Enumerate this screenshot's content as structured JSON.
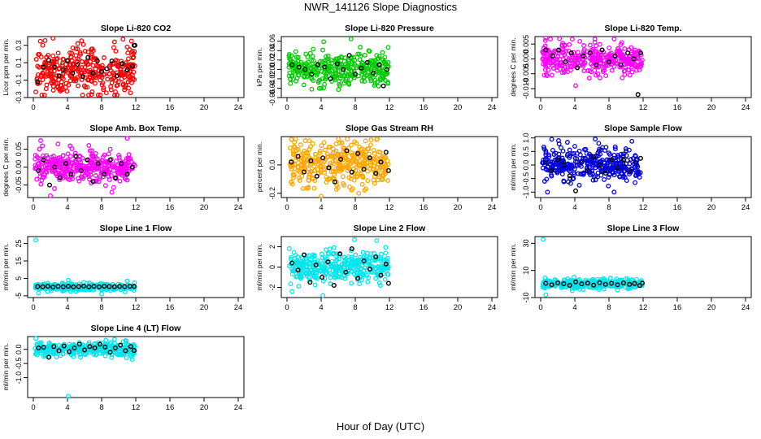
{
  "figure": {
    "title": "NWR_141126  Slope Diagnostics",
    "xlabel": "Hour of Day (UTC)"
  },
  "chart_data": [
    {
      "type": "scatter",
      "title": "Slope Li-820 CO2",
      "ylabel": "Licor ppm per min.",
      "color": "#ff0000",
      "xlim": [
        0,
        24
      ],
      "xticks": [
        0,
        4,
        8,
        12,
        16,
        20,
        24
      ],
      "ylim": [
        -0.3,
        0.4
      ],
      "yticks": [
        -0.3,
        -0.1,
        0.1,
        0.3
      ],
      "spread": 0.13,
      "outliers": [
        [
          2.3,
          0.38
        ],
        [
          10.5,
          0.37
        ],
        [
          7.6,
          -0.27
        ],
        [
          5.2,
          0.32
        ],
        [
          1.5,
          -0.2
        ]
      ],
      "black": [
        [
          0.5,
          -0.12
        ],
        [
          1.2,
          0.05
        ],
        [
          1.8,
          0.13
        ],
        [
          2.5,
          0.05
        ],
        [
          3.0,
          -0.05
        ],
        [
          3.5,
          0.02
        ],
        [
          4.0,
          0.12
        ],
        [
          4.6,
          -0.02
        ],
        [
          5.2,
          0.08
        ],
        [
          5.8,
          -0.06
        ],
        [
          6.4,
          0.16
        ],
        [
          7.0,
          -0.02
        ],
        [
          7.5,
          0.12
        ],
        [
          8.0,
          0.0
        ],
        [
          8.6,
          0.03
        ],
        [
          9.2,
          0.12
        ],
        [
          9.8,
          -0.05
        ],
        [
          10.4,
          0.09
        ],
        [
          11.0,
          0.02
        ],
        [
          11.6,
          0.06
        ],
        [
          11.8,
          0.3
        ],
        [
          11.9,
          0.3
        ]
      ]
    },
    {
      "type": "scatter",
      "title": "Slope Li-820 Pressure",
      "ylabel": "kPa per min.",
      "color": "#00cc00",
      "xlim": [
        0,
        24
      ],
      "xticks": [
        0,
        4,
        8,
        12,
        16,
        20,
        24
      ],
      "ylim": [
        -0.06,
        0.07
      ],
      "yticks": [
        -0.06,
        -0.04,
        -0.02,
        0.0,
        0.02,
        0.04,
        0.06
      ],
      "spread": 0.016,
      "outliers": [
        [
          7.5,
          0.065
        ],
        [
          0.4,
          -0.03
        ],
        [
          4.0,
          -0.04
        ],
        [
          6.2,
          -0.035
        ],
        [
          10.5,
          0.03
        ]
      ],
      "black": [
        [
          0.6,
          0.01
        ],
        [
          1.4,
          0.005
        ],
        [
          2.1,
          0.0
        ],
        [
          2.9,
          -0.01
        ],
        [
          3.6,
          0.01
        ],
        [
          4.4,
          0.005
        ],
        [
          5.1,
          -0.02
        ],
        [
          5.9,
          0.012
        ],
        [
          6.6,
          0.0
        ],
        [
          7.3,
          0.03
        ],
        [
          8.0,
          -0.01
        ],
        [
          8.7,
          0.003
        ],
        [
          9.4,
          0.015
        ],
        [
          10.1,
          -0.008
        ],
        [
          10.8,
          0.01
        ],
        [
          11.3,
          -0.035
        ],
        [
          11.7,
          0.0
        ]
      ]
    },
    {
      "type": "scatter",
      "title": "Slope Li-820 Temp.",
      "ylabel": "degrees C per min.",
      "color": "#ff00ff",
      "xlim": [
        0,
        24
      ],
      "xticks": [
        0,
        4,
        8,
        12,
        16,
        20,
        24
      ],
      "ylim": [
        -0.013,
        0.0075
      ],
      "yticks": [
        -0.01,
        -0.005,
        0.0,
        0.005
      ],
      "spread": 0.0025,
      "outliers": [
        [
          0.6,
          0.007
        ],
        [
          2.2,
          0.0068
        ],
        [
          9.5,
          0.0055
        ],
        [
          4.1,
          -0.009
        ]
      ],
      "black": [
        [
          0.6,
          0.003
        ],
        [
          1.4,
          0.001
        ],
        [
          2.1,
          0.003
        ],
        [
          2.9,
          -0.001
        ],
        [
          3.6,
          0.002
        ],
        [
          4.3,
          -0.003
        ],
        [
          5.0,
          0.001
        ],
        [
          5.8,
          0.002
        ],
        [
          6.5,
          -0.002
        ],
        [
          7.2,
          0.003
        ],
        [
          8.0,
          -0.001
        ],
        [
          8.7,
          0.001
        ],
        [
          9.4,
          -0.002
        ],
        [
          10.2,
          0.002
        ],
        [
          10.9,
          0.0
        ],
        [
          11.4,
          -0.012
        ],
        [
          11.7,
          0.002
        ]
      ]
    },
    {
      "type": "scatter",
      "title": "Slope Amb. Box Temp.",
      "ylabel": "degrees C per min.",
      "color": "#ff00ff",
      "xlim": [
        0,
        24
      ],
      "xticks": [
        0,
        4,
        8,
        12,
        16,
        20,
        24
      ],
      "ylim": [
        -0.085,
        0.085
      ],
      "yticks": [
        -0.05,
        0.0,
        0.05
      ],
      "spread": 0.022,
      "outliers": [
        [
          11.0,
          0.08
        ],
        [
          2.0,
          -0.08
        ],
        [
          6.5,
          0.06
        ],
        [
          9.2,
          -0.07
        ]
      ],
      "black": [
        [
          0.6,
          -0.01
        ],
        [
          1.2,
          0.02
        ],
        [
          1.9,
          -0.05
        ],
        [
          2.5,
          0.0
        ],
        [
          3.1,
          -0.03
        ],
        [
          3.8,
          0.01
        ],
        [
          4.4,
          -0.02
        ],
        [
          5.0,
          0.03
        ],
        [
          5.6,
          -0.01
        ],
        [
          6.3,
          0.02
        ],
        [
          7.0,
          -0.04
        ],
        [
          7.6,
          0.01
        ],
        [
          8.3,
          -0.02
        ],
        [
          9.0,
          0.02
        ],
        [
          9.6,
          -0.03
        ],
        [
          10.3,
          0.01
        ],
        [
          11.0,
          -0.02
        ],
        [
          11.6,
          0.0
        ]
      ]
    },
    {
      "type": "scatter",
      "title": "Slope Gas Stream RH",
      "ylabel": "percent per min.",
      "color": "#ffa500",
      "xlim": [
        0,
        24
      ],
      "xticks": [
        0,
        4,
        8,
        12,
        16,
        20,
        24
      ],
      "ylim": [
        -0.23,
        0.2
      ],
      "yticks": [
        -0.2,
        0.0
      ],
      "spread": 0.075,
      "outliers": [
        [
          0.5,
          0.18
        ],
        [
          2.6,
          0.17
        ],
        [
          4.0,
          -0.22
        ],
        [
          10.5,
          0.18
        ],
        [
          8.4,
          -0.2
        ]
      ],
      "black": [
        [
          0.5,
          0.02
        ],
        [
          1.3,
          0.06
        ],
        [
          2.0,
          -0.05
        ],
        [
          2.8,
          0.03
        ],
        [
          3.5,
          -0.08
        ],
        [
          4.2,
          0.05
        ],
        [
          4.9,
          -0.02
        ],
        [
          5.6,
          -0.12
        ],
        [
          6.3,
          0.04
        ],
        [
          7.0,
          0.1
        ],
        [
          7.6,
          -0.05
        ],
        [
          8.3,
          0.08
        ],
        [
          9.0,
          -0.03
        ],
        [
          9.7,
          0.05
        ],
        [
          10.4,
          -0.06
        ],
        [
          11.0,
          0.02
        ],
        [
          11.6,
          0.09
        ],
        [
          11.9,
          -0.04
        ]
      ]
    },
    {
      "type": "scatter",
      "title": "Slope Sample Flow",
      "ylabel": "ml/min per min.",
      "color": "#0000dd",
      "xlim": [
        0,
        24
      ],
      "xticks": [
        0,
        4,
        8,
        12,
        16,
        20,
        24
      ],
      "ylim": [
        -1.2,
        1.05
      ],
      "yticks": [
        -1.0,
        -0.5,
        0.0,
        0.5,
        1.0
      ],
      "spread": 0.3,
      "outliers": [
        [
          1.3,
          0.95
        ],
        [
          2.1,
          0.9
        ],
        [
          0.8,
          -1.0
        ],
        [
          8.6,
          -1.0
        ],
        [
          6.8,
          0.8
        ]
      ],
      "black": [
        [
          0.6,
          0.1
        ],
        [
          1.3,
          -0.2
        ],
        [
          2.0,
          0.2
        ],
        [
          2.7,
          0.0
        ],
        [
          3.4,
          -0.4
        ],
        [
          4.1,
          -0.95
        ],
        [
          4.8,
          0.1
        ],
        [
          5.5,
          -0.2
        ],
        [
          6.2,
          0.3
        ],
        [
          6.9,
          0.0
        ],
        [
          7.6,
          -0.3
        ],
        [
          8.3,
          0.2
        ],
        [
          9.0,
          -0.1
        ],
        [
          9.7,
          0.2
        ],
        [
          10.4,
          -0.2
        ],
        [
          11.1,
          0.1
        ],
        [
          11.7,
          0.25
        ]
      ]
    },
    {
      "type": "scatter",
      "title": "Slope Line 1 Flow",
      "ylabel": "ml/min per min.",
      "color": "#00e5ee",
      "xlim": [
        0,
        24
      ],
      "xticks": [
        0,
        4,
        8,
        12,
        16,
        20,
        24
      ],
      "ylim": [
        -6,
        29
      ],
      "yticks": [
        -5,
        5,
        15,
        25
      ],
      "spread": 1.0,
      "outliers": [
        [
          0.3,
          27
        ],
        [
          4.1,
          4.0
        ],
        [
          8.0,
          -4.0
        ],
        [
          11.0,
          3.5
        ]
      ],
      "black": [
        [
          0.5,
          0.3
        ],
        [
          1.1,
          0.2
        ],
        [
          1.7,
          0.5
        ],
        [
          2.3,
          0.0
        ],
        [
          2.9,
          0.4
        ],
        [
          3.5,
          0.2
        ],
        [
          4.1,
          0.5
        ],
        [
          4.7,
          0.1
        ],
        [
          5.3,
          0.3
        ],
        [
          5.9,
          0.6
        ],
        [
          6.5,
          0.2
        ],
        [
          7.1,
          0.4
        ],
        [
          7.7,
          0.1
        ],
        [
          8.3,
          0.5
        ],
        [
          8.9,
          0.3
        ],
        [
          9.5,
          0.2
        ],
        [
          10.1,
          0.4
        ],
        [
          10.7,
          0.3
        ],
        [
          11.3,
          0.5
        ],
        [
          11.8,
          0.4
        ]
      ]
    },
    {
      "type": "scatter",
      "title": "Slope Line 2 Flow",
      "ylabel": "ml/min per min.",
      "color": "#00e5ee",
      "xlim": [
        0,
        24
      ],
      "xticks": [
        0,
        4,
        8,
        12,
        16,
        20,
        24
      ],
      "ylim": [
        -3,
        3
      ],
      "yticks": [
        -2,
        0,
        2
      ],
      "spread": 0.7,
      "outliers": [
        [
          4.2,
          -2.8
        ],
        [
          7.9,
          2.7
        ],
        [
          10.5,
          2.6
        ],
        [
          0.6,
          -2.4
        ]
      ],
      "black": [
        [
          0.6,
          0.4
        ],
        [
          1.3,
          -0.3
        ],
        [
          2.0,
          1.2
        ],
        [
          2.7,
          -1.5
        ],
        [
          3.4,
          0.2
        ],
        [
          4.1,
          -1.0
        ],
        [
          4.8,
          0.5
        ],
        [
          5.5,
          -1.8
        ],
        [
          6.2,
          1.3
        ],
        [
          6.9,
          -0.5
        ],
        [
          7.6,
          1.8
        ],
        [
          8.3,
          -1.1
        ],
        [
          9.0,
          0.6
        ],
        [
          9.7,
          -0.2
        ],
        [
          10.4,
          1.0
        ],
        [
          11.0,
          -0.8
        ],
        [
          11.6,
          0.3
        ],
        [
          11.9,
          -1.6
        ]
      ]
    },
    {
      "type": "scatter",
      "title": "Slope Line 3 Flow",
      "ylabel": "ml/min per min.",
      "color": "#00e5ee",
      "xlim": [
        0,
        24
      ],
      "xticks": [
        0,
        4,
        8,
        12,
        16,
        20,
        24
      ],
      "ylim": [
        -10,
        35
      ],
      "yticks": [
        -10,
        10,
        30
      ],
      "spread": 1.6,
      "outliers": [
        [
          0.3,
          33
        ],
        [
          0.6,
          -8
        ],
        [
          3.9,
          5
        ],
        [
          9.0,
          -4.5
        ]
      ],
      "black": [
        [
          0.6,
          0.5
        ],
        [
          1.3,
          -0.5
        ],
        [
          2.0,
          0.8
        ],
        [
          2.7,
          0.2
        ],
        [
          3.4,
          -1.0
        ],
        [
          4.1,
          1.5
        ],
        [
          4.8,
          0.0
        ],
        [
          5.5,
          0.6
        ],
        [
          6.2,
          -0.8
        ],
        [
          6.9,
          0.9
        ],
        [
          7.6,
          -0.2
        ],
        [
          8.3,
          0.5
        ],
        [
          9.0,
          -0.6
        ],
        [
          9.7,
          0.8
        ],
        [
          10.4,
          -0.3
        ],
        [
          11.0,
          0.4
        ],
        [
          11.6,
          -1.2
        ],
        [
          11.9,
          0.6
        ]
      ]
    },
    {
      "type": "scatter",
      "title": "Slope Line 4 (LT) Flow",
      "ylabel": "ml/min per min.",
      "color": "#00e5ee",
      "xlim": [
        0,
        24
      ],
      "xticks": [
        0,
        4,
        8,
        12,
        16,
        20,
        24
      ],
      "ylim": [
        -1.7,
        0.45
      ],
      "yticks": [
        -1.0,
        -0.5,
        0.0
      ],
      "spread": 0.12,
      "outliers": [
        [
          0.3,
          0.38
        ],
        [
          4.1,
          -1.65
        ],
        [
          9.5,
          0.35
        ]
      ],
      "black": [
        [
          0.6,
          0.05
        ],
        [
          1.2,
          0.07
        ],
        [
          1.8,
          -0.28
        ],
        [
          2.4,
          0.1
        ],
        [
          3.0,
          -0.05
        ],
        [
          3.6,
          0.12
        ],
        [
          4.2,
          -0.08
        ],
        [
          4.8,
          0.05
        ],
        [
          5.4,
          0.18
        ],
        [
          6.0,
          -0.02
        ],
        [
          6.6,
          0.1
        ],
        [
          7.2,
          0.05
        ],
        [
          7.8,
          0.18
        ],
        [
          8.4,
          0.08
        ],
        [
          9.0,
          -0.1
        ],
        [
          9.6,
          0.05
        ],
        [
          10.2,
          0.15
        ],
        [
          10.8,
          -0.05
        ],
        [
          11.4,
          0.1
        ],
        [
          11.8,
          -0.04
        ]
      ]
    }
  ]
}
